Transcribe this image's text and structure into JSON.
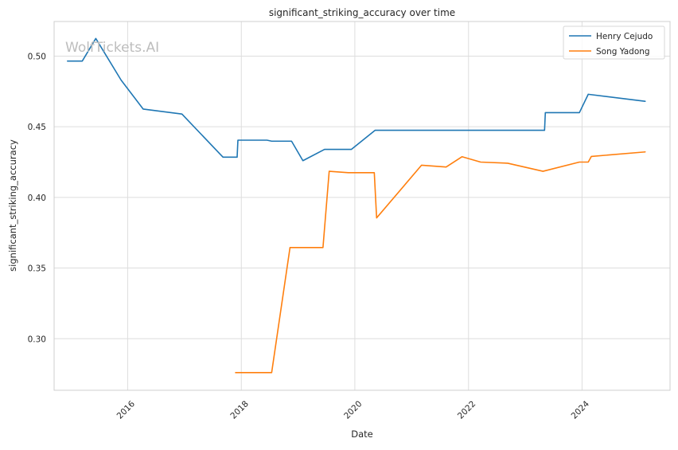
{
  "watermark": "WolfTickets.AI",
  "chart_data": {
    "type": "line",
    "title": "significant_striking_accuracy over time",
    "xlabel": "Date",
    "ylabel": "significant_striking_accuracy",
    "x_ticks": [
      "2016",
      "2018",
      "2020",
      "2022",
      "2024"
    ],
    "y_ticks": [
      "0.30",
      "0.35",
      "0.40",
      "0.45",
      "0.50"
    ],
    "xlim": [
      "2014-09-15",
      "2025-07-20"
    ],
    "ylim": [
      0.2635,
      0.5245
    ],
    "grid": true,
    "legend_position": "top-right",
    "colors": {
      "Henry Cejudo": "#1f77b4",
      "Song Yadong": "#ff7f0e"
    },
    "series": [
      {
        "name": "Henry Cejudo",
        "points": [
          {
            "x": "2014-12-10",
            "y": 0.4965
          },
          {
            "x": "2015-03-15",
            "y": 0.4965
          },
          {
            "x": "2015-06-10",
            "y": 0.5125
          },
          {
            "x": "2015-11-20",
            "y": 0.483
          },
          {
            "x": "2016-04-10",
            "y": 0.4625
          },
          {
            "x": "2016-12-15",
            "y": 0.459
          },
          {
            "x": "2017-09-05",
            "y": 0.4285
          },
          {
            "x": "2017-12-05",
            "y": 0.4285
          },
          {
            "x": "2017-12-10",
            "y": 0.4405
          },
          {
            "x": "2018-06-15",
            "y": 0.4405
          },
          {
            "x": "2018-07-15",
            "y": 0.4398
          },
          {
            "x": "2018-11-20",
            "y": 0.4398
          },
          {
            "x": "2019-02-01",
            "y": 0.426
          },
          {
            "x": "2019-06-20",
            "y": 0.434
          },
          {
            "x": "2019-12-10",
            "y": 0.434
          },
          {
            "x": "2020-05-10",
            "y": 0.4475
          },
          {
            "x": "2023-05-05",
            "y": 0.4475
          },
          {
            "x": "2023-05-10",
            "y": 0.46
          },
          {
            "x": "2023-12-15",
            "y": 0.46
          },
          {
            "x": "2024-02-10",
            "y": 0.473
          },
          {
            "x": "2025-02-10",
            "y": 0.468
          }
        ]
      },
      {
        "name": "Song Yadong",
        "points": [
          {
            "x": "2017-11-25",
            "y": 0.276
          },
          {
            "x": "2018-07-15",
            "y": 0.276
          },
          {
            "x": "2018-11-10",
            "y": 0.3645
          },
          {
            "x": "2019-06-10",
            "y": 0.3645
          },
          {
            "x": "2019-07-20",
            "y": 0.4185
          },
          {
            "x": "2019-11-20",
            "y": 0.4175
          },
          {
            "x": "2020-05-05",
            "y": 0.4175
          },
          {
            "x": "2020-05-20",
            "y": 0.3855
          },
          {
            "x": "2021-03-05",
            "y": 0.4228
          },
          {
            "x": "2021-08-10",
            "y": 0.4215
          },
          {
            "x": "2021-11-20",
            "y": 0.4288
          },
          {
            "x": "2022-03-20",
            "y": 0.425
          },
          {
            "x": "2022-09-10",
            "y": 0.4242
          },
          {
            "x": "2023-04-25",
            "y": 0.4185
          },
          {
            "x": "2023-12-15",
            "y": 0.425
          },
          {
            "x": "2024-02-10",
            "y": 0.425
          },
          {
            "x": "2024-03-01",
            "y": 0.429
          },
          {
            "x": "2025-02-10",
            "y": 0.4322
          }
        ]
      }
    ]
  }
}
